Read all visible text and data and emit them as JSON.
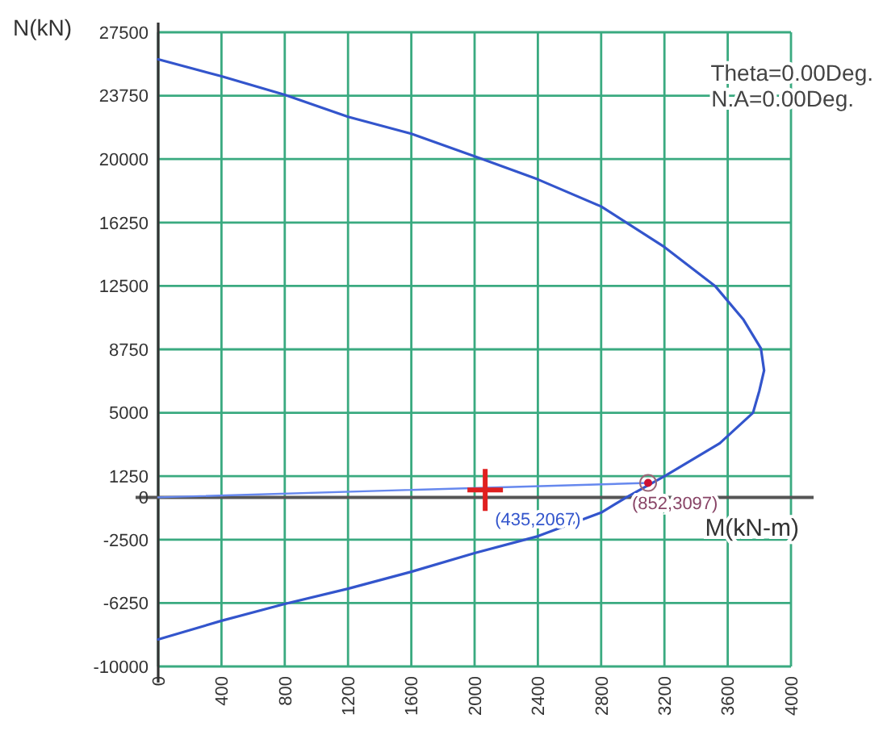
{
  "chart_data": {
    "type": "line",
    "xlabel": "M(kN-m)",
    "ylabel": "N(kN)",
    "xlim": [
      0,
      4000
    ],
    "xticks": [
      0,
      400,
      800,
      1200,
      1600,
      2000,
      2400,
      2800,
      3200,
      3600,
      4000
    ],
    "ylim": [
      -10000,
      27500
    ],
    "yticks": [
      -10000,
      -6250,
      -2500,
      0,
      1250,
      5000,
      8750,
      12500,
      16250,
      20000,
      23750,
      27500
    ],
    "grid": true,
    "series": [
      {
        "color": "#3355cc",
        "x": [
          0,
          400,
          800,
          1200,
          1600,
          2050,
          2400,
          2800,
          3200,
          3520,
          3700,
          3810,
          3830,
          3800,
          3760,
          3550,
          3210,
          2960,
          2800,
          2400,
          2000,
          1600,
          1200,
          800,
          400,
          0
        ],
        "values": [
          25900,
          24900,
          23800,
          22500,
          21500,
          20000,
          18800,
          17200,
          14800,
          12500,
          10500,
          8800,
          7500,
          6300,
          5000,
          3200,
          1300,
          0,
          -900,
          -2300,
          -3300,
          -4400,
          -5400,
          -6300,
          -7300,
          -8400
        ]
      },
      {
        "color": "#6688ee",
        "x": [
          0,
          3097
        ],
        "values": [
          0,
          852
        ]
      },
      {
        "type": "scatter",
        "color": "#e02020",
        "marker": "cross",
        "x": [
          2067
        ],
        "values": [
          435
        ]
      },
      {
        "type": "scatter",
        "color": "#cc1133",
        "marker": "circle",
        "x": [
          3097
        ],
        "values": [
          852
        ]
      }
    ],
    "annotations": [
      "Theta=0.00Deg.",
      "N.A=0.00Deg.",
      {
        "text": "(435,2067)",
        "x": 2067,
        "y": 435
      },
      {
        "text": "(852,3097)",
        "x": 3097,
        "y": 852
      }
    ]
  }
}
